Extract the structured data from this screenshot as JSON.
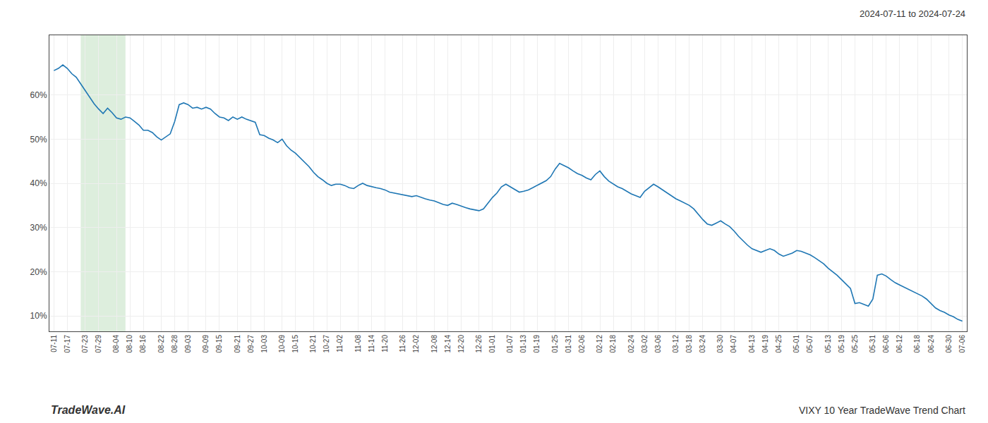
{
  "chart_data": {
    "type": "line",
    "title": "VIXY 10 Year TradeWave Trend Chart",
    "annotations": [
      "2024-07-11 to 2024-07-24",
      "TradeWave.AI"
    ],
    "categories": [
      "07-11",
      null,
      null,
      "07-17",
      null,
      null,
      null,
      "07-23",
      null,
      null,
      "07-29",
      null,
      null,
      null,
      "08-04",
      null,
      null,
      "08-10",
      null,
      null,
      "08-16",
      null,
      null,
      null,
      "08-22",
      null,
      null,
      "08-28",
      null,
      null,
      "09-03",
      null,
      null,
      null,
      "09-09",
      null,
      null,
      "09-15",
      null,
      null,
      null,
      "09-21",
      null,
      null,
      "09-27",
      null,
      null,
      "10-03",
      null,
      null,
      null,
      "10-09",
      null,
      null,
      "10-15",
      null,
      null,
      null,
      "10-21",
      null,
      null,
      "10-27",
      null,
      null,
      "11-02",
      null,
      null,
      null,
      "11-08",
      null,
      null,
      "11-14",
      null,
      null,
      "11-20",
      null,
      null,
      null,
      "11-26",
      null,
      null,
      "12-02",
      null,
      null,
      null,
      "12-08",
      null,
      null,
      "12-14",
      null,
      null,
      "12-20",
      null,
      null,
      null,
      "12-26",
      null,
      null,
      "01-01",
      null,
      null,
      null,
      "01-07",
      null,
      null,
      "01-13",
      null,
      null,
      "01-19",
      null,
      null,
      null,
      "01-25",
      null,
      null,
      "01-31",
      null,
      null,
      "02-06",
      null,
      null,
      null,
      "02-12",
      null,
      null,
      "02-18",
      null,
      null,
      null,
      "02-24",
      null,
      null,
      "03-02",
      null,
      null,
      "03-06",
      null,
      null,
      null,
      "03-12",
      null,
      null,
      "03-18",
      null,
      null,
      "03-24",
      null,
      null,
      null,
      "03-30",
      null,
      null,
      "04-07",
      null,
      null,
      null,
      "04-13",
      null,
      null,
      "04-19",
      null,
      null,
      "04-25",
      null,
      null,
      null,
      "05-01",
      null,
      null,
      "05-07",
      null,
      null,
      null,
      "05-13",
      null,
      null,
      "05-19",
      null,
      null,
      "05-25",
      null,
      null,
      null,
      "05-31",
      null,
      null,
      "06-06",
      null,
      null,
      "06-12",
      null,
      null,
      null,
      "06-18",
      null,
      null,
      "06-24",
      null,
      null,
      null,
      "06-30",
      null,
      null,
      "07-06"
    ],
    "values": [
      0.655,
      0.66,
      0.668,
      0.66,
      0.648,
      0.64,
      0.625,
      0.61,
      0.595,
      0.58,
      0.568,
      0.558,
      0.57,
      0.56,
      0.548,
      0.545,
      0.55,
      0.548,
      0.54,
      0.532,
      0.52,
      0.52,
      0.515,
      0.505,
      0.498,
      0.505,
      0.512,
      0.54,
      0.578,
      0.582,
      0.578,
      0.57,
      0.572,
      0.568,
      0.572,
      0.568,
      0.558,
      0.55,
      0.548,
      0.542,
      0.55,
      0.545,
      0.55,
      0.545,
      0.542,
      0.538,
      0.51,
      0.508,
      0.502,
      0.498,
      0.492,
      0.5,
      0.485,
      0.475,
      0.468,
      0.458,
      0.448,
      0.438,
      0.425,
      0.415,
      0.408,
      0.4,
      0.395,
      0.398,
      0.398,
      0.395,
      0.39,
      0.388,
      0.395,
      0.4,
      0.395,
      0.392,
      0.39,
      0.388,
      0.385,
      0.38,
      0.378,
      0.376,
      0.374,
      0.372,
      0.37,
      0.372,
      0.368,
      0.365,
      0.362,
      0.36,
      0.356,
      0.352,
      0.35,
      0.355,
      0.352,
      0.348,
      0.345,
      0.342,
      0.34,
      0.338,
      0.342,
      0.355,
      0.368,
      0.378,
      0.392,
      0.398,
      0.392,
      0.385,
      0.38,
      0.382,
      0.385,
      0.39,
      0.395,
      0.4,
      0.406,
      0.415,
      0.432,
      0.445,
      0.44,
      0.435,
      0.428,
      0.422,
      0.418,
      0.412,
      0.408,
      0.42,
      0.428,
      0.415,
      0.405,
      0.398,
      0.392,
      0.388,
      0.382,
      0.376,
      0.372,
      0.368,
      0.382,
      0.39,
      0.398,
      0.392,
      0.385,
      0.378,
      0.372,
      0.365,
      0.36,
      0.355,
      0.35,
      0.342,
      0.33,
      0.318,
      0.308,
      0.305,
      0.31,
      0.315,
      0.308,
      0.302,
      0.292,
      0.28,
      0.27,
      0.26,
      0.252,
      0.248,
      0.244,
      0.248,
      0.252,
      0.248,
      0.24,
      0.235,
      0.238,
      0.242,
      0.248,
      0.246,
      0.242,
      0.238,
      0.232,
      0.225,
      0.218,
      0.208,
      0.2,
      0.192,
      0.182,
      0.172,
      0.162,
      0.128,
      0.13,
      0.126,
      0.122,
      0.138,
      0.192,
      0.195,
      0.19,
      0.182,
      0.175,
      0.17,
      0.165,
      0.16,
      0.155,
      0.15,
      0.145,
      0.138,
      0.128,
      0.118,
      0.112,
      0.108,
      0.102,
      0.098,
      0.092,
      0.088
    ],
    "highlight": {
      "start": 6,
      "end": 16,
      "color": "#ddeedd"
    },
    "ylim": [
      0.065,
      0.735
    ],
    "yticks": [
      {
        "value": 0.1,
        "label": "10%"
      },
      {
        "value": 0.2,
        "label": "20%"
      },
      {
        "value": 0.3,
        "label": "30%"
      },
      {
        "value": 0.4,
        "label": "40%"
      },
      {
        "value": 0.5,
        "label": "50%"
      },
      {
        "value": 0.6,
        "label": "60%"
      }
    ],
    "grid": true
  }
}
